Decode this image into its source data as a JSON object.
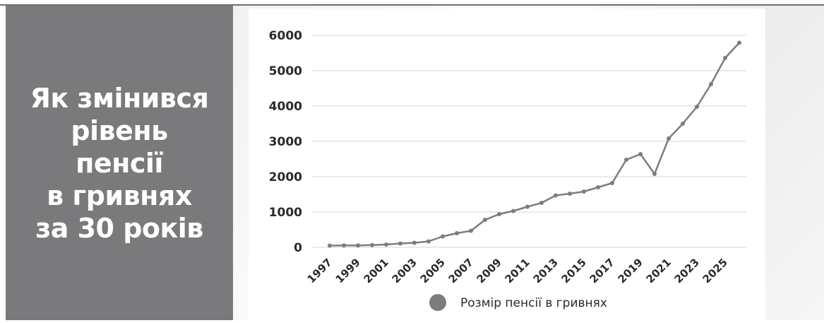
{
  "headline": {
    "lines": [
      "Як змінився",
      "рівень",
      "пенсії",
      "в гривнях",
      "за 30 років"
    ]
  },
  "colors": {
    "panel": "#7a7a7c",
    "line": "#7d7d7d",
    "grid": "#e3e3e3",
    "text": "#2a2a2a"
  },
  "chart_data": {
    "type": "line",
    "x": [
      1997,
      1998,
      1999,
      2000,
      2001,
      2002,
      2003,
      2004,
      2005,
      2006,
      2007,
      2008,
      2009,
      2010,
      2011,
      2012,
      2013,
      2014,
      2015,
      2016,
      2017,
      2018,
      2019,
      2020,
      2021,
      2022,
      2023,
      2024,
      2025,
      2026
    ],
    "x_tick_labels": [
      "1997",
      "1999",
      "2001",
      "2003",
      "2005",
      "2007",
      "2009",
      "2011",
      "2013",
      "2015",
      "2017",
      "2019",
      "2021",
      "2023",
      "2025"
    ],
    "series": [
      {
        "name": "Розмір пенсії в гривнях",
        "values": [
          50,
          55,
          55,
          65,
          80,
          110,
          130,
          170,
          310,
          400,
          470,
          780,
          940,
          1030,
          1150,
          1260,
          1470,
          1520,
          1580,
          1700,
          1820,
          2480,
          2640,
          2080,
          3080,
          3500,
          3980,
          4620,
          5360,
          5790
        ]
      }
    ],
    "y_ticks": [
      "0",
      "1000",
      "2000",
      "3000",
      "4000",
      "5000",
      "6000"
    ],
    "ylim": [
      0,
      6000
    ],
    "grid": "horizontal",
    "legend_position": "bottom"
  }
}
